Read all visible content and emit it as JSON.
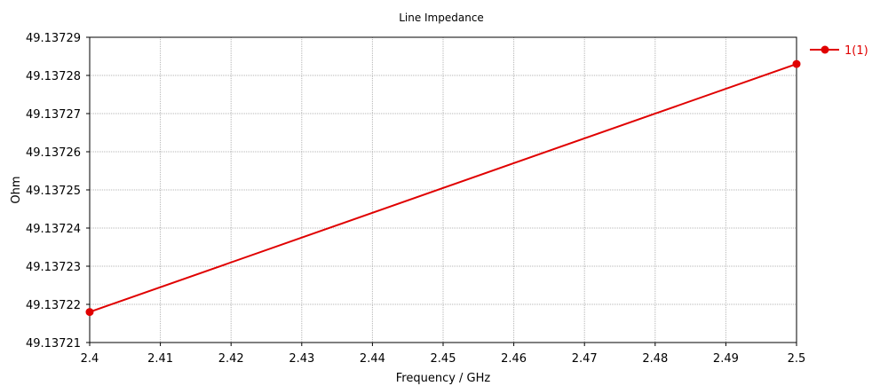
{
  "chart_data": {
    "type": "line",
    "title": "Line Impedance",
    "xlabel": "Frequency / GHz",
    "ylabel": "Ohm",
    "xlim": [
      2.4,
      2.5
    ],
    "ylim": [
      49.13721,
      49.13729
    ],
    "x_ticks": [
      "2.4",
      "2.41",
      "2.42",
      "2.43",
      "2.44",
      "2.45",
      "2.46",
      "2.47",
      "2.48",
      "2.49",
      "2.5"
    ],
    "y_ticks": [
      "49.13721",
      "49.13722",
      "49.13723",
      "49.13724",
      "49.13725",
      "49.13726",
      "49.13727",
      "49.13728",
      "49.13729"
    ],
    "grid": true,
    "legend_position": "top-right-outside",
    "series": [
      {
        "name": "1(1)",
        "color": "#e00000",
        "x": [
          2.4,
          2.5
        ],
        "y": [
          49.137218,
          49.137283
        ]
      }
    ]
  }
}
